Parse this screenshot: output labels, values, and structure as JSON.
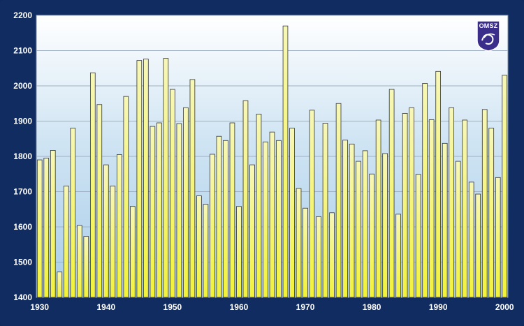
{
  "chart_data": {
    "type": "bar",
    "title": "",
    "xlabel": "",
    "ylabel": "",
    "ylim": [
      1400,
      2200
    ],
    "xlim": [
      1930,
      2000
    ],
    "y_ticks": [
      1400,
      1500,
      1600,
      1700,
      1800,
      1900,
      2000,
      2100,
      2200
    ],
    "x_ticks": [
      1930,
      1940,
      1950,
      1960,
      1970,
      1980,
      1990,
      2000
    ],
    "grid": true,
    "bar_color": "#f4f47a",
    "x": [
      1930,
      1931,
      1932,
      1933,
      1934,
      1935,
      1936,
      1937,
      1938,
      1939,
      1940,
      1941,
      1942,
      1943,
      1944,
      1945,
      1946,
      1947,
      1948,
      1949,
      1950,
      1951,
      1952,
      1953,
      1954,
      1955,
      1956,
      1957,
      1958,
      1959,
      1960,
      1961,
      1962,
      1963,
      1964,
      1965,
      1966,
      1967,
      1968,
      1969,
      1970,
      1971,
      1972,
      1973,
      1974,
      1975,
      1976,
      1977,
      1978,
      1979,
      1980,
      1981,
      1982,
      1983,
      1984,
      1985,
      1986,
      1987,
      1988,
      1989,
      1990,
      1991,
      1992,
      1993,
      1994,
      1995,
      1996,
      1997,
      1998,
      1999,
      2000
    ],
    "values": [
      1790,
      1795,
      1817,
      1472,
      1716,
      1880,
      1604,
      1573,
      2037,
      1947,
      1776,
      1716,
      1805,
      1970,
      1658,
      2072,
      2076,
      1885,
      1895,
      2078,
      1990,
      1893,
      1938,
      2018,
      1688,
      1664,
      1806,
      1857,
      1845,
      1895,
      1658,
      1958,
      1776,
      1920,
      1841,
      1869,
      1845,
      2170,
      1880,
      1709,
      1653,
      1931,
      1629,
      1894,
      1640,
      1950,
      1846,
      1835,
      1786,
      1816,
      1750,
      1903,
      1808,
      1990,
      1636,
      1922,
      1938,
      1749,
      2007,
      1904,
      2041,
      1837,
      1938,
      1786,
      1903,
      1727,
      1693,
      1933,
      1880,
      1740,
      2030
    ]
  },
  "logo": {
    "text": "OMSZ"
  }
}
